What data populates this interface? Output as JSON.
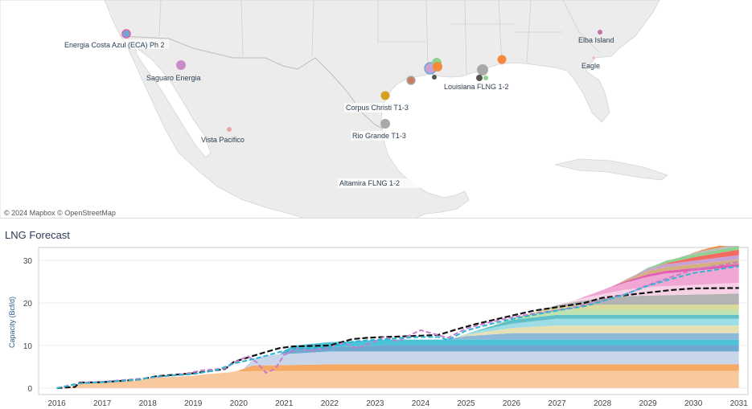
{
  "map": {
    "credit": "© 2024 Mapbox  © OpenStreetMap",
    "labels": [
      {
        "name": "label-energia-costa-azul",
        "text": "Energia Costa Azul (ECA) Ph 2"
      },
      {
        "name": "label-saguaro-energia",
        "text": "Saguaro Energia"
      },
      {
        "name": "label-vista-pacifico",
        "text": "Vista Pacifico"
      },
      {
        "name": "label-corpus-christi",
        "text": "Corpus Christi T1-3"
      },
      {
        "name": "label-rio-grande",
        "text": "Rio Grande T1-3"
      },
      {
        "name": "label-altamira-flng",
        "text": "Altamira FLNG 1-2"
      },
      {
        "name": "label-louisiana-flng",
        "text": "Louisiana FLNG 1-2"
      },
      {
        "name": "label-elba-island",
        "text": "Elba Island"
      },
      {
        "name": "label-eagle",
        "text": "Eagle"
      }
    ],
    "colors": {
      "land": "#ececec",
      "water": "#ffffff",
      "border": "#bdbdbd"
    }
  },
  "forecast_title": "LNG Forecast",
  "chart_data": {
    "type": "area",
    "title": "",
    "xlabel": "",
    "ylabel": "Capacity (Bcf/d)",
    "xlim": [
      2015.6,
      2031.2
    ],
    "ylim": [
      -1.5,
      33
    ],
    "x_ticks": [
      "2016",
      "2017",
      "2018",
      "2019",
      "2020",
      "2021",
      "2022",
      "2023",
      "2024",
      "2025",
      "2026",
      "2027",
      "2028",
      "2029",
      "2030",
      "2031"
    ],
    "y_ticks": [
      "0",
      "10",
      "20",
      "30"
    ],
    "grid": true,
    "stacked_series": [
      {
        "color": "#f8c99e",
        "points": [
          [
            2016.0,
            0
          ],
          [
            2016.4,
            0.3
          ],
          [
            2016.5,
            1
          ],
          [
            2017.0,
            1.3
          ],
          [
            2017.8,
            1.8
          ],
          [
            2018.1,
            2.4
          ],
          [
            2019.0,
            2.9
          ],
          [
            2019.3,
            3.3
          ],
          [
            2019.7,
            3.6
          ],
          [
            2019.9,
            3.9
          ],
          [
            2020.3,
            4.0
          ],
          [
            2031,
            4.0
          ]
        ]
      },
      {
        "color": "#f5a964",
        "points": [
          [
            2016,
            0
          ],
          [
            2019.9,
            0
          ],
          [
            2020.0,
            0.2
          ],
          [
            2020.3,
            1.3
          ],
          [
            2021.0,
            1.4
          ],
          [
            2022.0,
            1.6
          ],
          [
            2031,
            1.6
          ]
        ]
      },
      {
        "color": "#c9d6ea",
        "points": [
          [
            2016,
            0
          ],
          [
            2020.1,
            0
          ],
          [
            2020.4,
            2.0
          ],
          [
            2020.8,
            2.5
          ],
          [
            2021.5,
            2.8
          ],
          [
            2022.0,
            3.0
          ],
          [
            2031,
            3.0
          ]
        ]
      },
      {
        "color": "#6fa9d1",
        "points": [
          [
            2016,
            0
          ],
          [
            2020.9,
            0
          ],
          [
            2021.0,
            0.8
          ],
          [
            2022.6,
            1.2
          ],
          [
            2023.2,
            1.5
          ],
          [
            2031,
            1.5
          ]
        ]
      },
      {
        "color": "#4cc3d9",
        "points": [
          [
            2016,
            0
          ],
          [
            2021.0,
            0
          ],
          [
            2021.2,
            1.0
          ],
          [
            2022.3,
            1.2
          ],
          [
            2023.0,
            1.3
          ],
          [
            2031,
            1.3
          ]
        ]
      },
      {
        "color": "#8fb9d9",
        "points": [
          [
            2016,
            0
          ],
          [
            2024.5,
            0
          ],
          [
            2025.0,
            0.8
          ],
          [
            2026.0,
            1.5
          ],
          [
            2031,
            1.5
          ]
        ]
      },
      {
        "color": "#e6e1b5",
        "points": [
          [
            2016,
            0
          ],
          [
            2024.7,
            0
          ],
          [
            2025.3,
            0.6
          ],
          [
            2026.0,
            1.2
          ],
          [
            2027.0,
            1.8
          ],
          [
            2031,
            1.8
          ]
        ]
      },
      {
        "color": "#9fdde6",
        "points": [
          [
            2016,
            0
          ],
          [
            2024.8,
            0
          ],
          [
            2025.5,
            0.7
          ],
          [
            2026.3,
            1.2
          ],
          [
            2027.0,
            1.6
          ],
          [
            2031,
            1.6
          ]
        ]
      },
      {
        "color": "#5fc0c7",
        "points": [
          [
            2016,
            0
          ],
          [
            2025.0,
            0
          ],
          [
            2025.6,
            0.4
          ],
          [
            2026.0,
            0.9
          ],
          [
            2031,
            0.9
          ]
        ]
      },
      {
        "color": "#bfe3b0",
        "points": [
          [
            2016,
            0
          ],
          [
            2025.5,
            0
          ],
          [
            2026.5,
            0.8
          ],
          [
            2027.5,
            1.2
          ],
          [
            2031,
            1.2
          ]
        ]
      },
      {
        "color": "#d9d99a",
        "points": [
          [
            2016,
            0
          ],
          [
            2026.0,
            0
          ],
          [
            2027.0,
            0.8
          ],
          [
            2028.0,
            1.2
          ],
          [
            2031,
            1.2
          ]
        ]
      },
      {
        "color": "#b3b3b3",
        "points": [
          [
            2016,
            0
          ],
          [
            2026.5,
            0
          ],
          [
            2027.5,
            1.0
          ],
          [
            2028.5,
            2.0
          ],
          [
            2031,
            2.6
          ]
        ]
      },
      {
        "color": "#f7d2e6",
        "points": [
          [
            2016,
            0
          ],
          [
            2027.0,
            0
          ],
          [
            2028.0,
            1.0
          ],
          [
            2029.0,
            2.0
          ],
          [
            2031,
            2.5
          ]
        ]
      },
      {
        "color": "#f1a7d3",
        "points": [
          [
            2016,
            0
          ],
          [
            2027.4,
            0
          ],
          [
            2028.4,
            1.5
          ],
          [
            2029.4,
            3.0
          ],
          [
            2031,
            3.8
          ]
        ]
      },
      {
        "color": "#e35fb2",
        "points": [
          [
            2016,
            0
          ],
          [
            2028.0,
            0
          ],
          [
            2029.0,
            0.6
          ],
          [
            2031,
            0.7
          ]
        ]
      },
      {
        "color": "#d5b07f",
        "points": [
          [
            2016,
            0
          ],
          [
            2028.2,
            0
          ],
          [
            2029.0,
            0.8
          ],
          [
            2031,
            1.0
          ]
        ]
      },
      {
        "color": "#c7a2d3",
        "points": [
          [
            2016,
            0
          ],
          [
            2028.4,
            0
          ],
          [
            2029.3,
            0.7
          ],
          [
            2031,
            1.0
          ]
        ]
      },
      {
        "color": "#f36b5f",
        "points": [
          [
            2016,
            0
          ],
          [
            2029.2,
            0
          ],
          [
            2030.0,
            0.8
          ],
          [
            2031,
            1.3
          ]
        ]
      },
      {
        "color": "#8fd18e",
        "points": [
          [
            2016,
            0
          ],
          [
            2028.7,
            0
          ],
          [
            2029.4,
            0.6
          ],
          [
            2031,
            0.8
          ]
        ]
      },
      {
        "color": "#bcbcbc",
        "points": [
          [
            2016,
            0
          ],
          [
            2029.6,
            0
          ],
          [
            2030.2,
            0.5
          ],
          [
            2031,
            0.6
          ]
        ]
      },
      {
        "color": "#f58b3a",
        "points": [
          [
            2016,
            0
          ],
          [
            2029.9,
            0
          ],
          [
            2030.3,
            0.3
          ],
          [
            2031,
            0.6
          ]
        ]
      }
    ],
    "lines": [
      {
        "style": "dashed-black",
        "points": [
          [
            2016.0,
            0
          ],
          [
            2016.4,
            0.3
          ],
          [
            2016.5,
            1.3
          ],
          [
            2017.0,
            1.4
          ],
          [
            2017.8,
            2.0
          ],
          [
            2018.2,
            2.8
          ],
          [
            2019.0,
            3.5
          ],
          [
            2019.3,
            3.9
          ],
          [
            2019.7,
            4.5
          ],
          [
            2019.9,
            6.2
          ],
          [
            2020.2,
            7.2
          ],
          [
            2020.6,
            8.5
          ],
          [
            2020.9,
            9.4
          ],
          [
            2021.2,
            9.8
          ],
          [
            2021.6,
            9.9
          ],
          [
            2022.0,
            10.0
          ],
          [
            2022.3,
            10.9
          ],
          [
            2022.5,
            11.5
          ],
          [
            2022.8,
            11.8
          ],
          [
            2023.0,
            11.9
          ],
          [
            2023.5,
            12.1
          ],
          [
            2024.0,
            12.3
          ],
          [
            2024.4,
            12.5
          ],
          [
            2024.8,
            13.8
          ],
          [
            2025.2,
            15.0
          ],
          [
            2025.6,
            16.0
          ],
          [
            2026.0,
            17.0
          ],
          [
            2026.5,
            18.2
          ],
          [
            2027.0,
            19.0
          ],
          [
            2027.6,
            20.0
          ],
          [
            2028.0,
            21.2
          ],
          [
            2028.5,
            21.8
          ],
          [
            2029.0,
            22.4
          ],
          [
            2029.5,
            23.0
          ],
          [
            2030.0,
            23.4
          ],
          [
            2031,
            23.5
          ]
        ]
      },
      {
        "style": "dashed-purple",
        "points": [
          [
            2016.0,
            0
          ],
          [
            2016.5,
            1.2
          ],
          [
            2017.0,
            1.5
          ],
          [
            2017.8,
            2.2
          ],
          [
            2018.2,
            2.6
          ],
          [
            2018.8,
            3.3
          ],
          [
            2019.2,
            4.2
          ],
          [
            2019.7,
            4.6
          ],
          [
            2019.9,
            6.0
          ],
          [
            2020.2,
            7.5
          ],
          [
            2020.4,
            6.0
          ],
          [
            2020.6,
            3.6
          ],
          [
            2020.8,
            4.5
          ],
          [
            2021.0,
            7.8
          ],
          [
            2021.3,
            9.3
          ],
          [
            2021.6,
            8.8
          ],
          [
            2022.0,
            9.6
          ],
          [
            2022.3,
            10.6
          ],
          [
            2022.6,
            9.4
          ],
          [
            2022.9,
            10.5
          ],
          [
            2023.2,
            12.0
          ],
          [
            2023.5,
            11.0
          ],
          [
            2023.8,
            12.6
          ],
          [
            2024.0,
            13.6
          ],
          [
            2024.3,
            12.7
          ],
          [
            2024.6,
            11.8
          ],
          [
            2025.0,
            14.0
          ],
          [
            2025.5,
            15.4
          ],
          [
            2026.0,
            16.6
          ],
          [
            2026.5,
            17.5
          ],
          [
            2027.0,
            18.3
          ],
          [
            2027.5,
            19.2
          ],
          [
            2028.0,
            20.6
          ],
          [
            2028.5,
            22.0
          ],
          [
            2029.0,
            24.2
          ],
          [
            2029.5,
            26.0
          ],
          [
            2030.0,
            27.8
          ],
          [
            2031,
            29.6
          ]
        ]
      },
      {
        "style": "dashed-cyan",
        "points": [
          [
            2016.0,
            0
          ],
          [
            2016.5,
            1.1
          ],
          [
            2017.0,
            1.4
          ],
          [
            2017.8,
            2.0
          ],
          [
            2018.2,
            2.7
          ],
          [
            2019.0,
            3.3
          ],
          [
            2019.5,
            4.2
          ],
          [
            2019.9,
            5.8
          ],
          [
            2020.4,
            7.0
          ],
          [
            2020.9,
            8.5
          ],
          [
            2021.2,
            9.2
          ],
          [
            2021.6,
            9.3
          ],
          [
            2022.0,
            9.6
          ],
          [
            2022.5,
            10.9
          ],
          [
            2022.8,
            11.2
          ],
          [
            2023.3,
            11.5
          ],
          [
            2023.6,
            11.8
          ],
          [
            2024.0,
            12.0
          ],
          [
            2024.4,
            12.0
          ],
          [
            2024.6,
            11.3
          ],
          [
            2025.0,
            13.5
          ],
          [
            2025.6,
            15.2
          ],
          [
            2026.0,
            16.2
          ],
          [
            2026.5,
            17.2
          ],
          [
            2027.0,
            18.2
          ],
          [
            2027.6,
            19.2
          ],
          [
            2028.0,
            20.4
          ],
          [
            2028.5,
            22.0
          ],
          [
            2029.0,
            24.0
          ],
          [
            2029.5,
            25.6
          ],
          [
            2030.0,
            27.0
          ],
          [
            2031,
            28.6
          ]
        ]
      }
    ]
  }
}
